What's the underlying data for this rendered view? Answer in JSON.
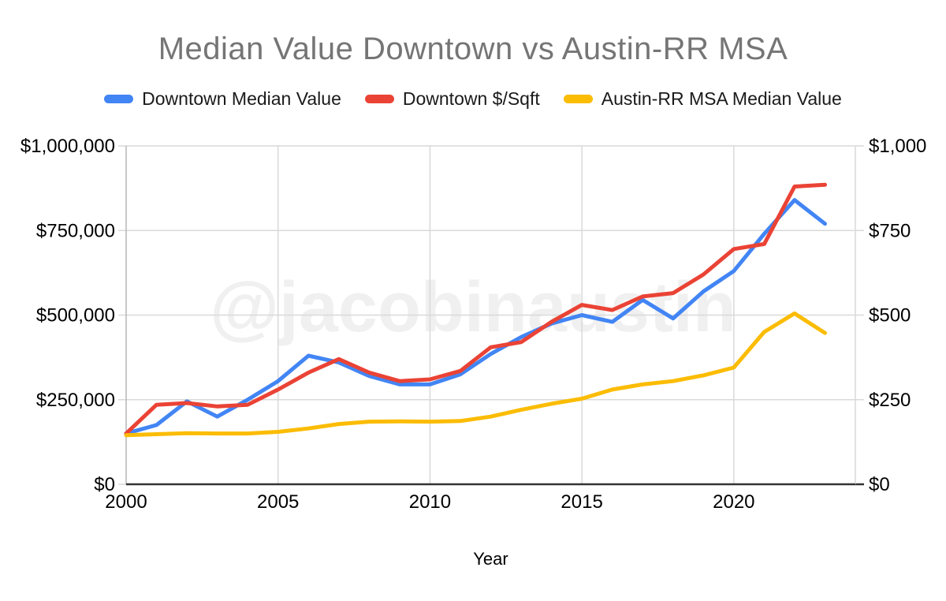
{
  "header": {
    "title": "Median Value Downtown vs Austin-RR MSA"
  },
  "chart_data": {
    "type": "line",
    "title": "Median Value Downtown vs Austin-RR MSA",
    "xlabel": "Year",
    "watermark": "@jacobinaustin",
    "x": [
      2000,
      2001,
      2002,
      2003,
      2004,
      2005,
      2006,
      2007,
      2008,
      2009,
      2010,
      2011,
      2012,
      2013,
      2014,
      2015,
      2016,
      2017,
      2018,
      2019,
      2020,
      2021,
      2022,
      2023
    ],
    "series": [
      {
        "name": "Downtown Median Value",
        "color": "#4285F4",
        "axis": "left",
        "values": [
          150000,
          175000,
          245000,
          200000,
          250000,
          305000,
          380000,
          360000,
          320000,
          295000,
          295000,
          325000,
          385000,
          435000,
          475000,
          500000,
          480000,
          545000,
          490000,
          570000,
          630000,
          740000,
          840000,
          770000
        ]
      },
      {
        "name": "Downtown $/Sqft",
        "color": "#EA4335",
        "axis": "right",
        "values": [
          150,
          235,
          240,
          230,
          235,
          280,
          330,
          370,
          330,
          305,
          310,
          335,
          405,
          420,
          480,
          530,
          515,
          555,
          565,
          620,
          695,
          710,
          880,
          885
        ]
      },
      {
        "name": "Austin-RR MSA Median Value",
        "color": "#FBBC04",
        "axis": "left",
        "values": [
          145000,
          148000,
          151000,
          150000,
          150000,
          155000,
          165000,
          178000,
          185000,
          186000,
          185000,
          187000,
          200000,
          220000,
          238000,
          253000,
          280000,
          295000,
          305000,
          322000,
          345000,
          450000,
          505000,
          447000
        ]
      }
    ],
    "x_axis": {
      "min": 2000,
      "max": 2024,
      "tick_values": [
        2000,
        2005,
        2010,
        2015,
        2020
      ],
      "tick_labels": [
        "2000",
        "2005",
        "2010",
        "2015",
        "2020"
      ]
    },
    "left_axis": {
      "min": 0,
      "max": 1000000,
      "tick_values": [
        0,
        250000,
        500000,
        750000,
        1000000
      ],
      "tick_labels": [
        "$0",
        "$250,000",
        "$500,000",
        "$750,000",
        "$1,000,000"
      ]
    },
    "right_axis": {
      "min": 0,
      "max": 1000,
      "tick_values": [
        0,
        250,
        500,
        750,
        1000
      ],
      "tick_labels": [
        "$0",
        "$250",
        "$500",
        "$750",
        "$1,000"
      ]
    },
    "grid": true,
    "legend_position": "top"
  }
}
